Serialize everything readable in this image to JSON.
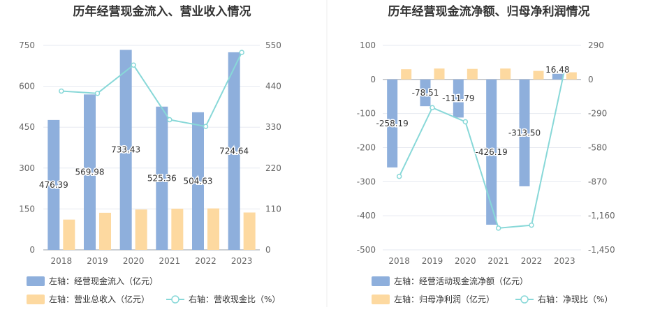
{
  "chart_data": [
    {
      "type": "bar",
      "title": "历年经营现金流入、营业收入情况",
      "categories": [
        "2018",
        "2019",
        "2020",
        "2021",
        "2022",
        "2023"
      ],
      "left_axis": {
        "min": 0,
        "max": 750,
        "ticks": [
          "0",
          "150",
          "300",
          "450",
          "600",
          "750"
        ]
      },
      "right_axis": {
        "min": 0,
        "max": 550,
        "ticks": [
          "0",
          "110",
          "220",
          "330",
          "440",
          "550"
        ]
      },
      "series": [
        {
          "name": "左轴：经营现金流入（亿元）",
          "axis": "left",
          "kind": "bar",
          "color": "#8eafdc",
          "values": [
            476.39,
            569.98,
            733.43,
            525.36,
            504.63,
            724.64
          ],
          "labels": [
            "476.39",
            "569.98",
            "733.43",
            "525.36",
            "504.63",
            "724.64"
          ]
        },
        {
          "name": "左轴：营业总收入（亿元）",
          "axis": "left",
          "kind": "bar",
          "color": "#fdd9a0",
          "values": [
            111,
            136,
            148,
            151,
            152,
            137
          ]
        },
        {
          "name": "右轴：营收现金比（%）",
          "axis": "right",
          "kind": "line",
          "color": "#88d8d8",
          "values": [
            427,
            421,
            497,
            350,
            332,
            531
          ]
        }
      ],
      "grid": true,
      "legend_position": "bottom"
    },
    {
      "type": "bar",
      "title": "历年经营现金流净额、归母净利润情况",
      "categories": [
        "2018",
        "2019",
        "2020",
        "2021",
        "2022",
        "2023"
      ],
      "left_axis": {
        "min": -500,
        "max": 100,
        "ticks": [
          "-500",
          "-400",
          "-300",
          "-200",
          "-100",
          "0",
          "100"
        ]
      },
      "right_axis": {
        "min": -1450,
        "max": 290,
        "ticks": [
          "-1,450",
          "-1,160",
          "-870",
          "-580",
          "-290",
          "0",
          "290"
        ]
      },
      "series": [
        {
          "name": "左轴：经营活动现金流净额（亿元）",
          "axis": "left",
          "kind": "bar",
          "color": "#8eafdc",
          "values": [
            -258.19,
            -78.51,
            -111.79,
            -426.19,
            -313.5,
            16.48
          ],
          "labels": [
            "-258.19",
            "-78.51",
            "-111.79",
            "-426.19",
            "-313.50",
            "16.48"
          ]
        },
        {
          "name": "左轴：归母净利润（亿元）",
          "axis": "left",
          "kind": "bar",
          "color": "#fdd9a0",
          "values": [
            30,
            32,
            31,
            32,
            25,
            21
          ]
        },
        {
          "name": "右轴：净现比（%）",
          "axis": "right",
          "kind": "line",
          "color": "#88d8d8",
          "values": [
            -825,
            -240,
            -360,
            -1265,
            -1240,
            82
          ]
        }
      ],
      "grid": true,
      "legend_position": "bottom"
    }
  ]
}
